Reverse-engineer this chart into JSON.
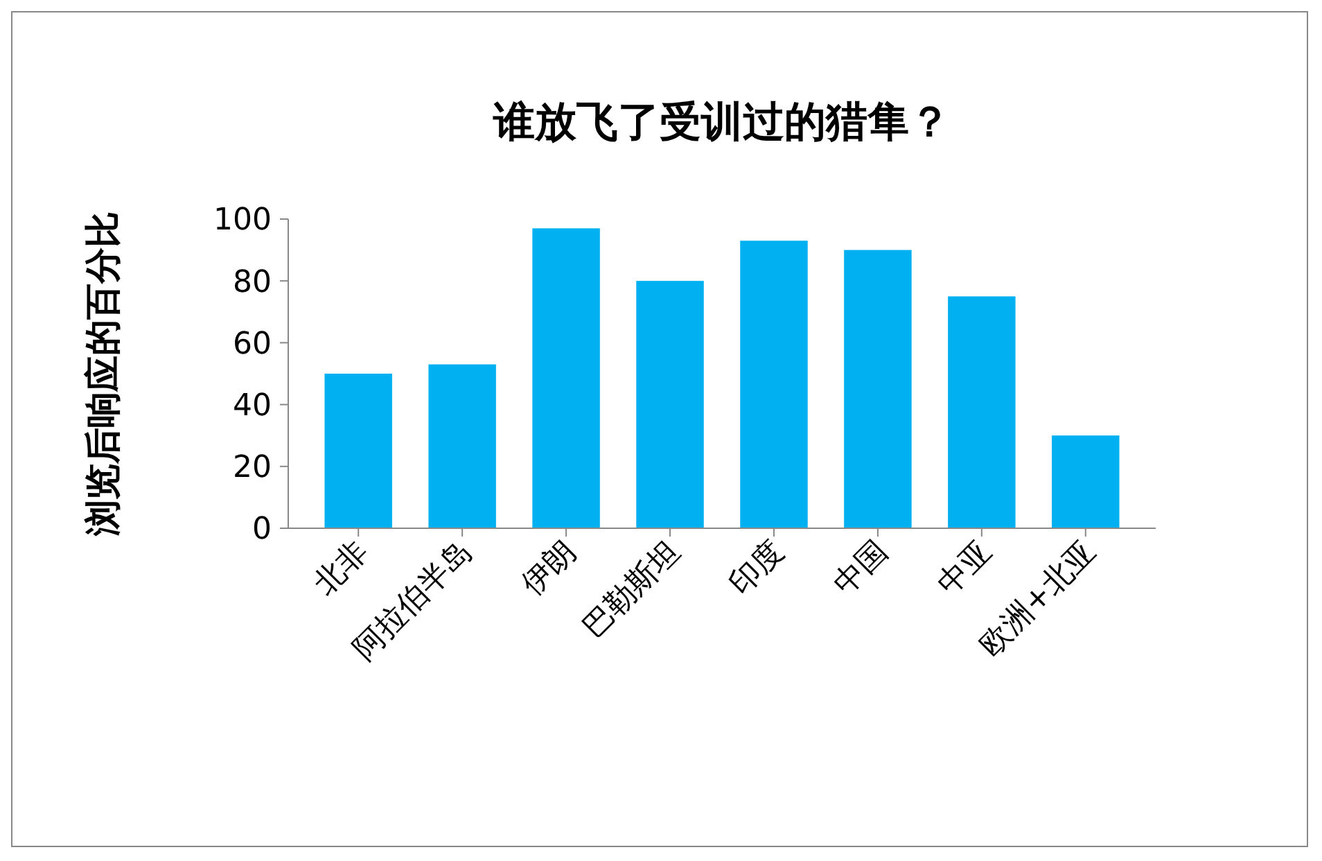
{
  "chart_data": {
    "type": "bar",
    "title": "谁放飞了受训过的猎隼？",
    "ylabel": "浏览后响应的百分比",
    "categories": [
      "北非",
      "阿拉伯半岛",
      "伊朗",
      "巴勒斯坦",
      "印度",
      "中国",
      "中亚",
      "欧洲+北亚"
    ],
    "values": [
      50,
      53,
      97,
      80,
      93,
      90,
      75,
      30
    ],
    "color": "#00b0f0",
    "ylim": [
      0,
      100
    ],
    "yticks": [
      0,
      20,
      40,
      60,
      80,
      100
    ],
    "grid": false
  }
}
